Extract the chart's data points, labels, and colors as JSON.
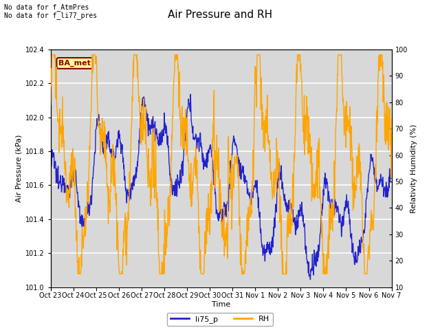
{
  "title": "Air Pressure and RH",
  "xlabel": "Time",
  "ylabel_left": "Air Pressure (kPa)",
  "ylabel_right": "Relativity Humidity (%)",
  "ylim_left": [
    101.0,
    102.4
  ],
  "ylim_right": [
    10,
    100
  ],
  "yticks_left": [
    101.0,
    101.2,
    101.4,
    101.6,
    101.8,
    102.0,
    102.2,
    102.4
  ],
  "yticks_right": [
    10,
    20,
    30,
    40,
    50,
    60,
    70,
    80,
    90,
    100
  ],
  "xtick_labels": [
    "Oct 23",
    "Oct 24",
    "Oct 25",
    "Oct 26",
    "Oct 27",
    "Oct 28",
    "Oct 29",
    "Oct 30",
    "Oct 31",
    "Nov 1",
    "Nov 2",
    "Nov 3",
    "Nov 4",
    "Nov 5",
    "Nov 6",
    "Nov 7"
  ],
  "annotation_text": "No data for f_AtmPres\nNo data for f_li77_pres",
  "box_label": "BA_met",
  "box_facecolor": "#FFFF99",
  "box_edgecolor": "#8B0000",
  "box_textcolor": "#8B0000",
  "line1_color": "#2222CC",
  "line2_color": "#FFA500",
  "legend_labels": [
    "li75_p",
    "RH"
  ],
  "background_color": "#D8D8D8",
  "grid_color": "#FFFFFF",
  "title_fontsize": 11,
  "annot_fontsize": 7,
  "tick_fontsize": 7,
  "label_fontsize": 8,
  "legend_fontsize": 8
}
